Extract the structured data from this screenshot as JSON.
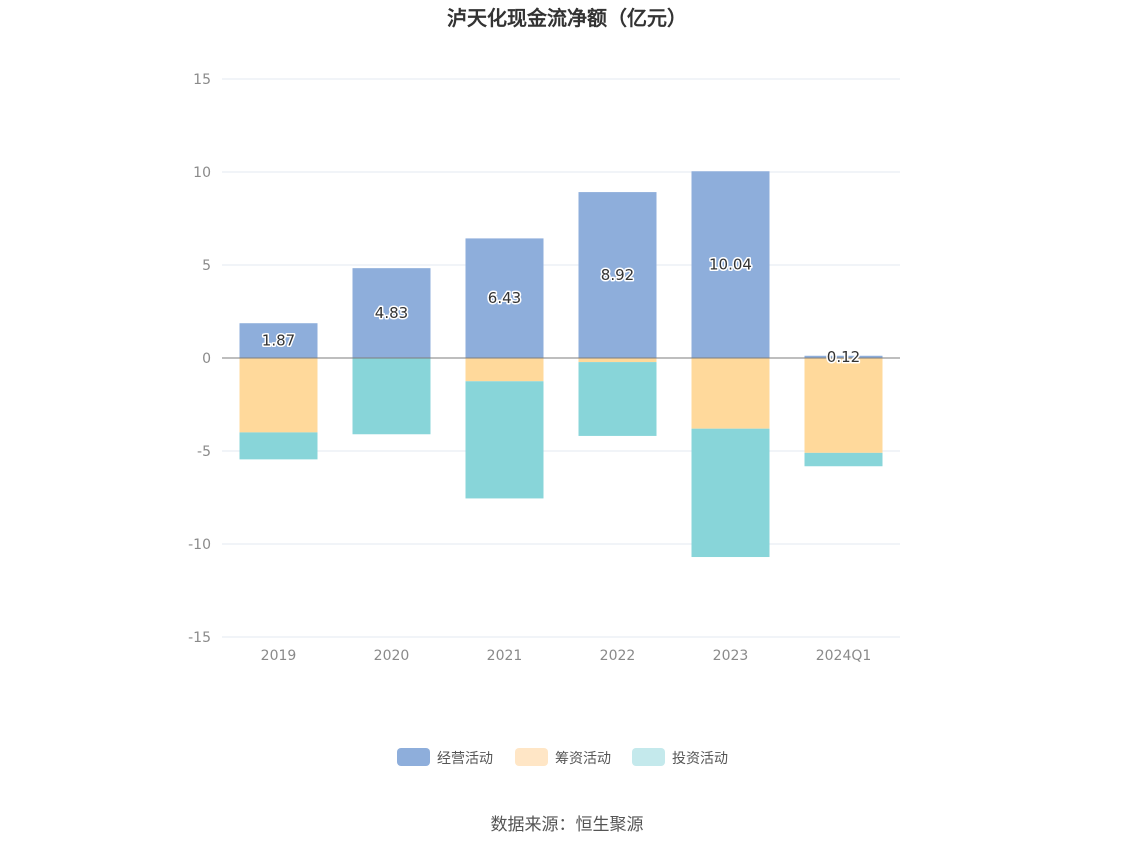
{
  "chart_data": {
    "type": "bar",
    "stacked": true,
    "title": "泸天化现金流净额（亿元）",
    "categories": [
      "2019",
      "2020",
      "2021",
      "2022",
      "2023",
      "2024Q1"
    ],
    "ylim": [
      -15,
      15
    ],
    "yticks": [
      15,
      10,
      5,
      0,
      -5,
      -10,
      -15
    ],
    "grid": true,
    "legend_position": "bottom",
    "series": [
      {
        "name": "经营活动",
        "color": "#8eaedb",
        "values": [
          1.87,
          4.83,
          6.43,
          8.92,
          10.04,
          0.12
        ],
        "labels": [
          "1.87",
          "4.83",
          "6.43",
          "8.92",
          "10.04",
          "0.12"
        ]
      },
      {
        "name": "筹资活动",
        "color": "#ffd99b",
        "values": [
          -4.0,
          0.0,
          -1.25,
          -0.22,
          -3.8,
          -5.1
        ]
      },
      {
        "name": "投资活动",
        "color": "#88d5d9",
        "values": [
          -1.45,
          -4.1,
          -6.3,
          -3.97,
          -6.9,
          -0.72
        ]
      }
    ],
    "source": "数据来源：恒生聚源"
  }
}
